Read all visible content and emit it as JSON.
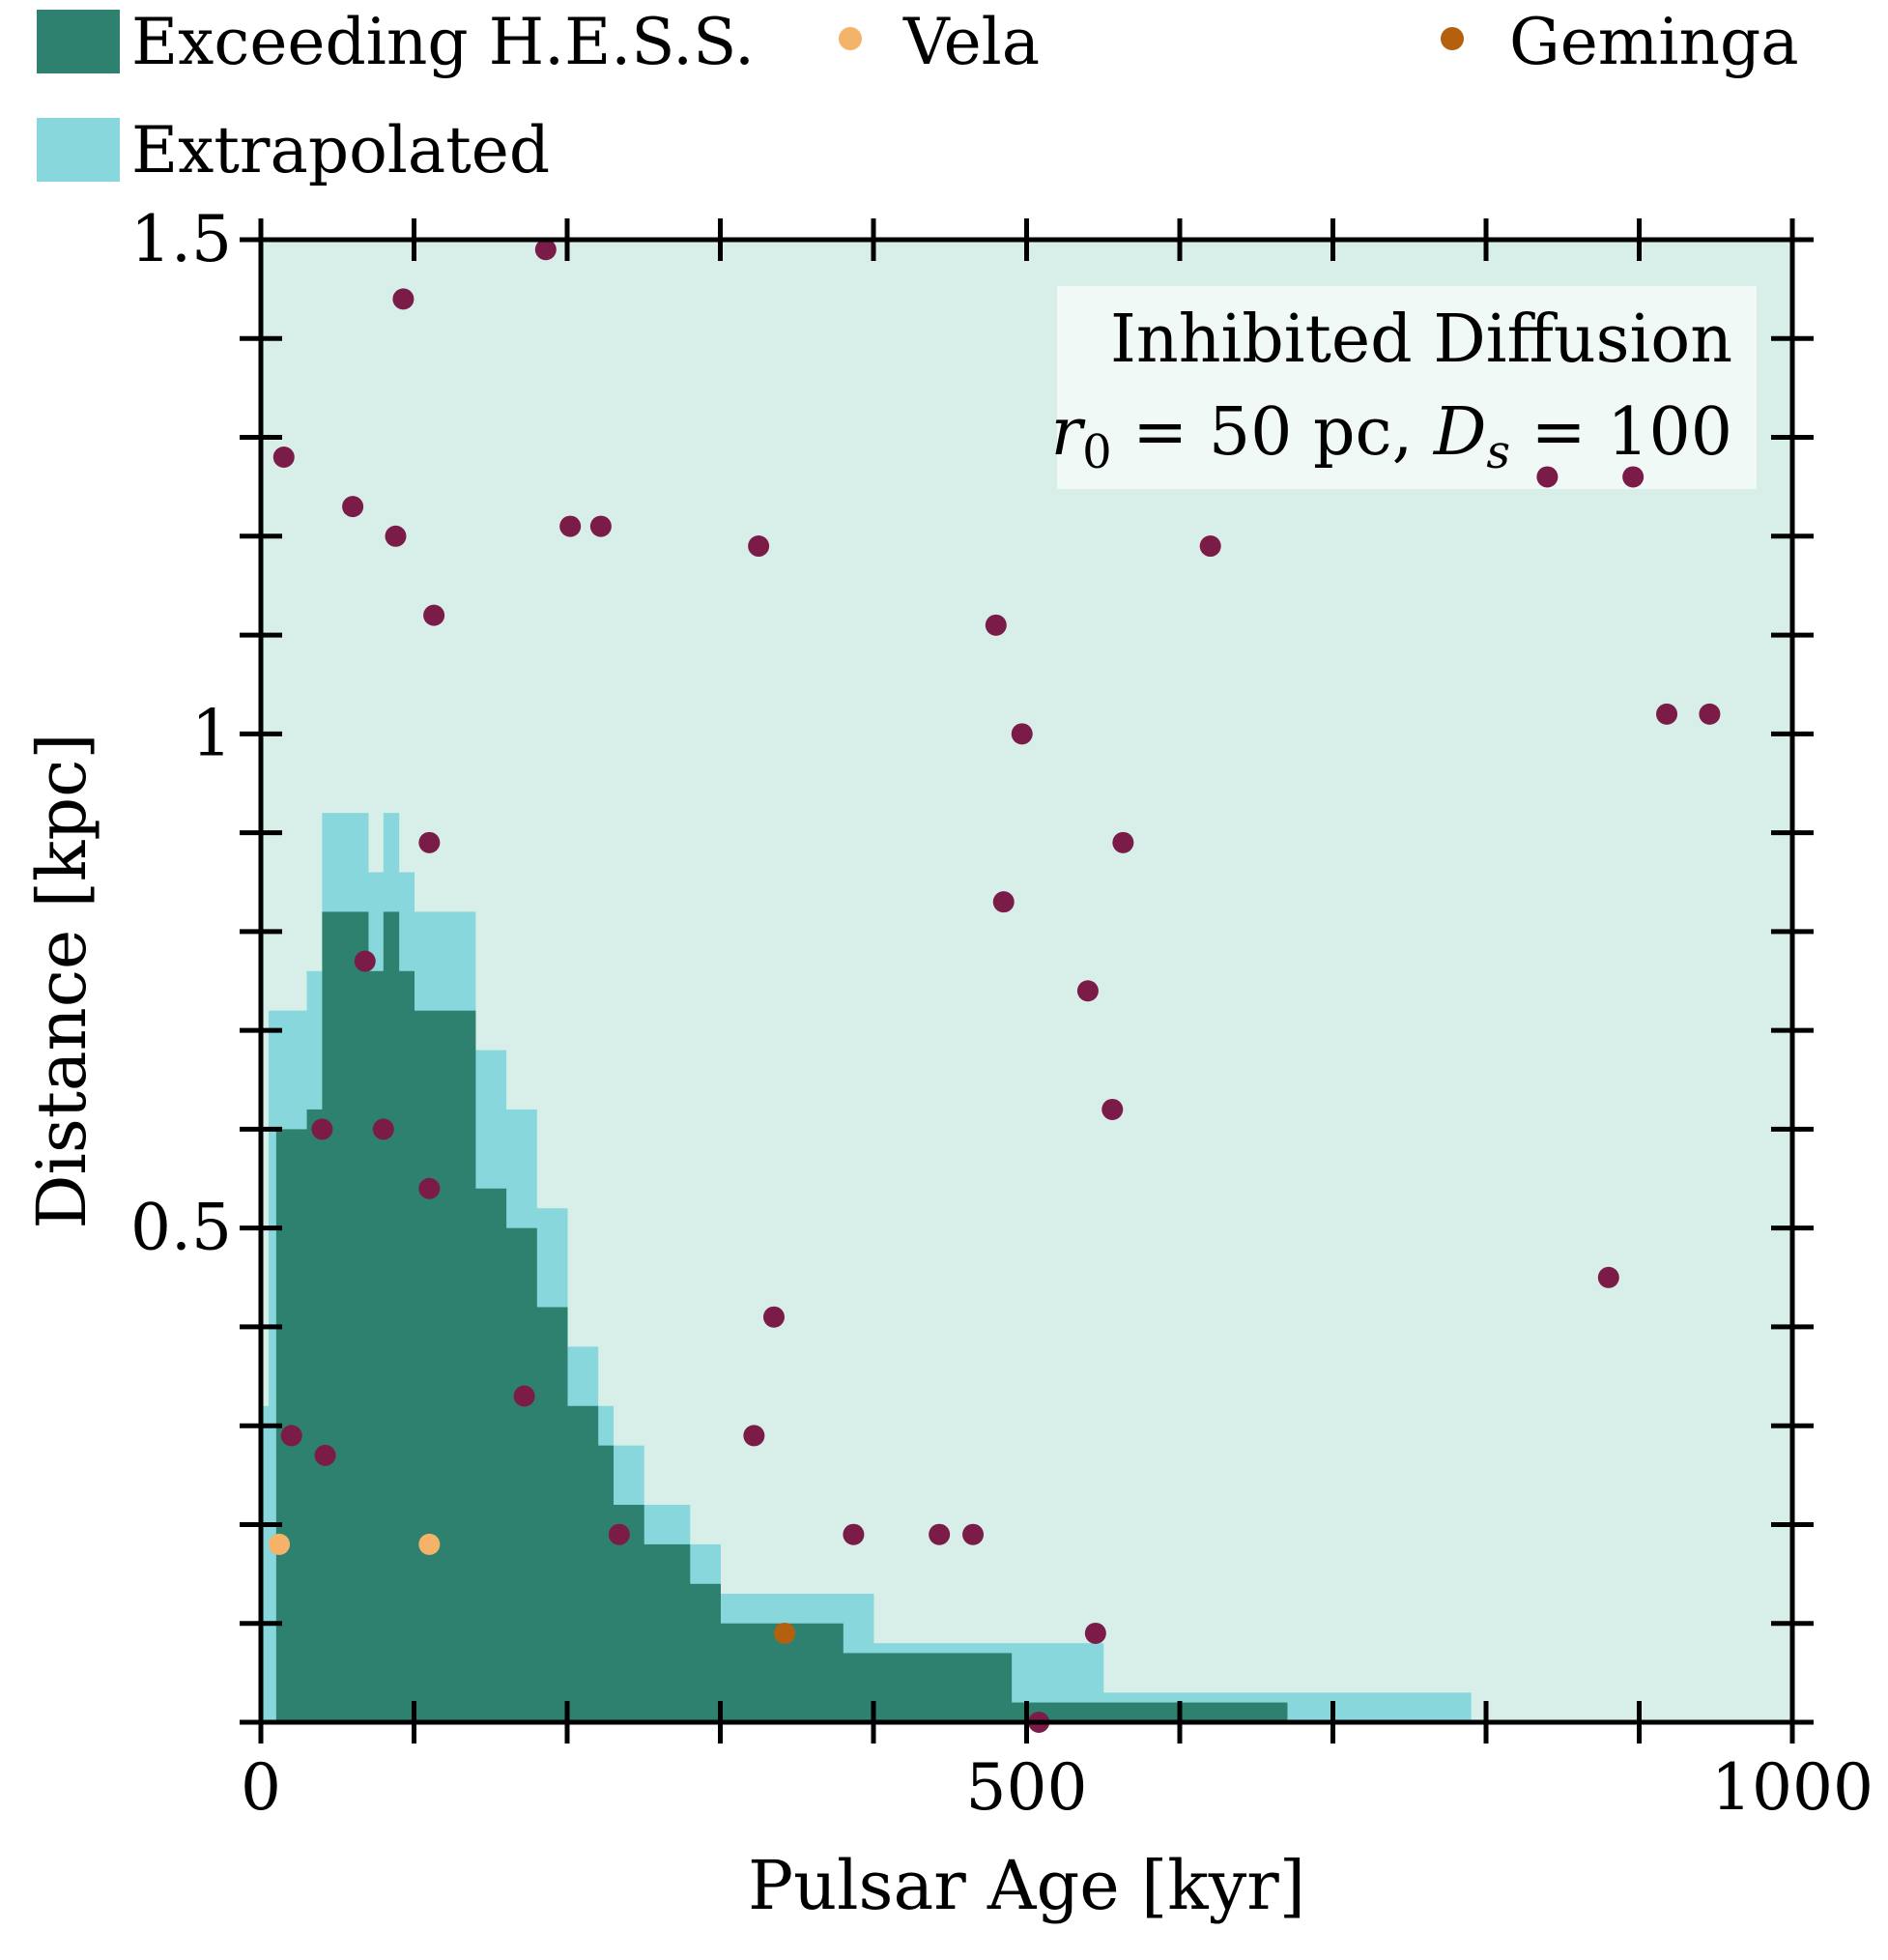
{
  "colors": {
    "background_region": "#d7efe8",
    "exceeding": "#2e816f",
    "extrapolated": "#88d7dd",
    "pulsar": "#7a1c47",
    "vela": "#f5b36a",
    "geminga": "#b5600f",
    "annotation_box": "#f6fbf9"
  },
  "legend": {
    "items": [
      {
        "label": "Exceeding H.E.S.S.",
        "kind": "patch",
        "color_key": "exceeding"
      },
      {
        "label": "Vela",
        "kind": "dot",
        "color_key": "vela"
      },
      {
        "label": "Geminga",
        "kind": "dot",
        "color_key": "geminga"
      },
      {
        "label": "Extrapolated",
        "kind": "patch",
        "color_key": "extrapolated"
      }
    ]
  },
  "annotation": {
    "line1": "Inhibited Diffusion",
    "line2": {
      "r_sym": "r",
      "r_sub": "0",
      "mid": " = 50 pc, ",
      "d_sym": "D",
      "d_sub": "s",
      "tail": " = 100"
    }
  },
  "chart_data": {
    "type": "scatter",
    "xlabel": "Pulsar Age [kyr]",
    "ylabel": "Distance [kpc]",
    "xlim": [
      0,
      1000
    ],
    "ylim": [
      0,
      1.5
    ],
    "xticks": [
      {
        "value": 0,
        "label": "0"
      },
      {
        "value": 500,
        "label": "500"
      },
      {
        "value": 1000,
        "label": "1000"
      }
    ],
    "yticks": [
      {
        "value": 0.5,
        "label": "0.5"
      },
      {
        "value": 1,
        "label": "1"
      },
      {
        "value": 1.5,
        "label": "1.5"
      }
    ],
    "x_minor_step": 100,
    "y_minor_step": 0.1,
    "grid": false,
    "legend_position": "above plot",
    "regions": {
      "extrapolated_steps": [
        [
          0,
          5,
          0.32
        ],
        [
          5,
          10,
          0.72
        ],
        [
          10,
          30,
          0.72
        ],
        [
          30,
          40,
          0.76
        ],
        [
          40,
          50,
          0.92
        ],
        [
          50,
          60,
          0.92
        ],
        [
          60,
          70,
          0.92
        ],
        [
          70,
          80,
          0.86
        ],
        [
          80,
          90,
          0.92
        ],
        [
          90,
          100,
          0.86
        ],
        [
          100,
          110,
          0.82
        ],
        [
          110,
          120,
          0.82
        ],
        [
          120,
          130,
          0.82
        ],
        [
          130,
          140,
          0.82
        ],
        [
          140,
          160,
          0.68
        ],
        [
          160,
          180,
          0.62
        ],
        [
          180,
          200,
          0.52
        ],
        [
          200,
          210,
          0.38
        ],
        [
          210,
          220,
          0.38
        ],
        [
          220,
          230,
          0.32
        ],
        [
          230,
          250,
          0.28
        ],
        [
          250,
          280,
          0.22
        ],
        [
          280,
          300,
          0.18
        ],
        [
          300,
          350,
          0.13
        ],
        [
          350,
          380,
          0.13
        ],
        [
          380,
          400,
          0.13
        ],
        [
          400,
          490,
          0.08
        ],
        [
          490,
          550,
          0.08
        ],
        [
          550,
          670,
          0.03
        ],
        [
          670,
          790,
          0.03
        ]
      ],
      "exceeding_steps": [
        [
          0,
          10,
          0.0
        ],
        [
          10,
          30,
          0.6
        ],
        [
          30,
          40,
          0.62
        ],
        [
          40,
          50,
          0.82
        ],
        [
          50,
          60,
          0.82
        ],
        [
          60,
          70,
          0.82
        ],
        [
          70,
          80,
          0.76
        ],
        [
          80,
          90,
          0.82
        ],
        [
          90,
          100,
          0.76
        ],
        [
          100,
          110,
          0.72
        ],
        [
          110,
          120,
          0.72
        ],
        [
          120,
          130,
          0.72
        ],
        [
          130,
          140,
          0.72
        ],
        [
          140,
          160,
          0.54
        ],
        [
          160,
          180,
          0.5
        ],
        [
          180,
          200,
          0.42
        ],
        [
          200,
          210,
          0.32
        ],
        [
          210,
          220,
          0.32
        ],
        [
          220,
          230,
          0.28
        ],
        [
          230,
          250,
          0.22
        ],
        [
          250,
          280,
          0.18
        ],
        [
          280,
          300,
          0.14
        ],
        [
          300,
          350,
          0.1
        ],
        [
          350,
          380,
          0.1
        ],
        [
          380,
          400,
          0.07
        ],
        [
          400,
          490,
          0.07
        ],
        [
          490,
          550,
          0.02
        ],
        [
          550,
          670,
          0.02
        ]
      ]
    },
    "series": [
      {
        "color_key": "pulsar",
        "points": [
          [
            15,
            1.28
          ],
          [
            93,
            1.44
          ],
          [
            186,
            1.49
          ],
          [
            60,
            1.23
          ],
          [
            88,
            1.2
          ],
          [
            202,
            1.21
          ],
          [
            222,
            1.21
          ],
          [
            325,
            1.19
          ],
          [
            113,
            1.12
          ],
          [
            480,
            1.11
          ],
          [
            497,
            1.0
          ],
          [
            563,
            0.89
          ],
          [
            110,
            0.89
          ],
          [
            485,
            0.83
          ],
          [
            540,
            0.74
          ],
          [
            68,
            0.77
          ],
          [
            40,
            0.6
          ],
          [
            80,
            0.6
          ],
          [
            110,
            0.54
          ],
          [
            556,
            0.62
          ],
          [
            335,
            0.41
          ],
          [
            172,
            0.33
          ],
          [
            20,
            0.29
          ],
          [
            42,
            0.27
          ],
          [
            322,
            0.29
          ],
          [
            234,
            0.19
          ],
          [
            387,
            0.19
          ],
          [
            443,
            0.19
          ],
          [
            465,
            0.19
          ],
          [
            545,
            0.09
          ],
          [
            508,
            0.0
          ],
          [
            620,
            1.19
          ],
          [
            840,
            1.26
          ],
          [
            896,
            1.26
          ],
          [
            918,
            1.02
          ],
          [
            946,
            1.02
          ],
          [
            880,
            0.45
          ]
        ]
      },
      {
        "name": "Vela",
        "color_key": "vela",
        "points": [
          [
            12,
            0.18
          ],
          [
            110,
            0.18
          ]
        ]
      },
      {
        "name": "Geminga",
        "color_key": "geminga",
        "points": [
          [
            342,
            0.09
          ]
        ]
      }
    ]
  }
}
